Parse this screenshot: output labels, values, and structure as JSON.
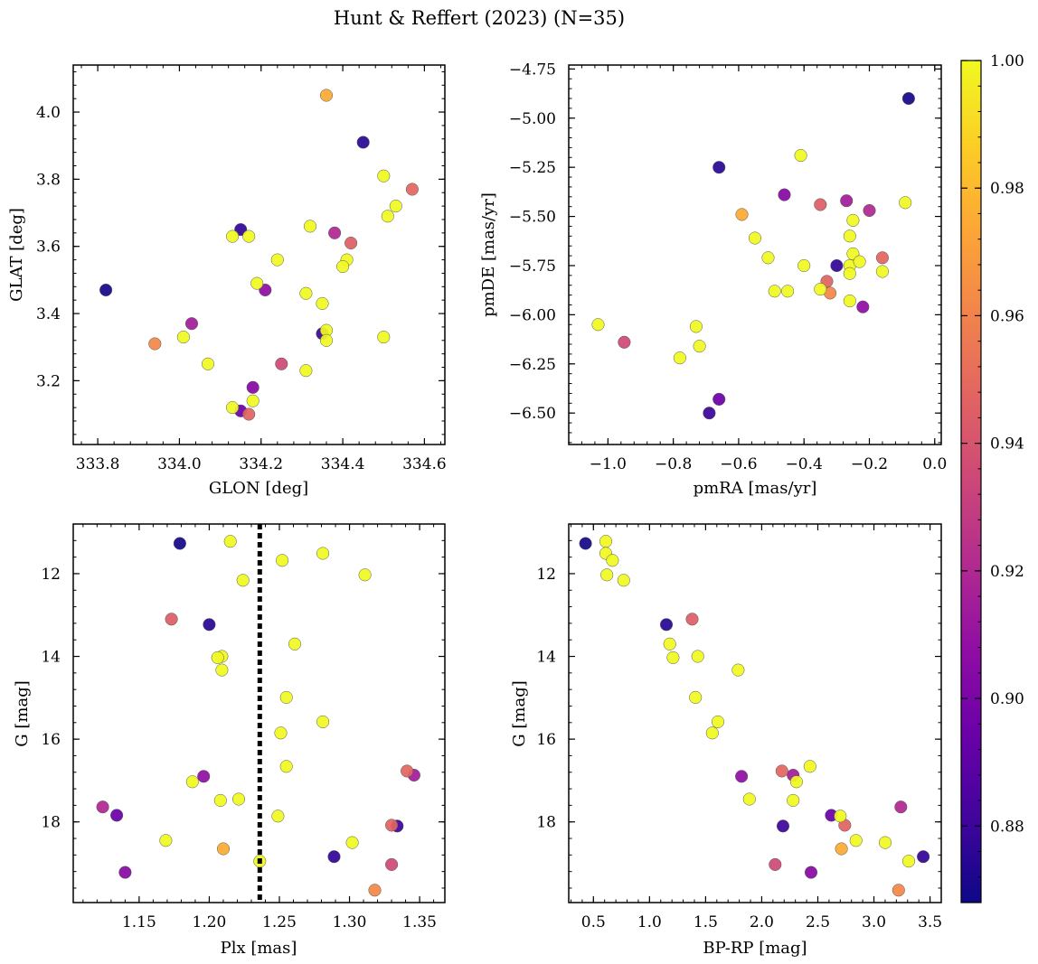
{
  "chart_data": {
    "title": "Hunt & Reffert (2023) (N=35)",
    "type": "scatter",
    "colorbar": {
      "vmin": 0.868,
      "vmax": 1.0,
      "ticks": [
        0.88,
        0.9,
        0.92,
        0.94,
        0.96,
        0.98,
        1.0
      ],
      "tick_labels": [
        "0.88",
        "0.90",
        "0.92",
        "0.94",
        "0.96",
        "0.98",
        "1.00"
      ],
      "colormap": "plasma"
    },
    "panels": [
      {
        "name": "sky-position",
        "xlabel": "GLON [deg]",
        "ylabel": "GLAT [deg]",
        "xlim": [
          333.74,
          334.65
        ],
        "ylim": [
          3.01,
          4.14
        ],
        "invert_y": false,
        "xticks": [
          333.8,
          334.0,
          334.2,
          334.4,
          334.6
        ],
        "xtick_labels": [
          "333.8",
          "334.0",
          "334.2",
          "334.4",
          "334.6"
        ],
        "yticks": [
          3.2,
          3.4,
          3.6,
          3.8,
          4.0
        ],
        "ytick_labels": [
          "3.2",
          "3.4",
          "3.6",
          "3.8",
          "4.0"
        ]
      },
      {
        "name": "proper-motion",
        "xlabel": "pmRA [mas/yr]",
        "ylabel": "pmDE [mas/yr]",
        "xlim": [
          -1.12,
          0.02
        ],
        "ylim": [
          -6.66,
          -4.73
        ],
        "invert_y": false,
        "xticks": [
          -1.0,
          -0.8,
          -0.6,
          -0.4,
          -0.2,
          0.0
        ],
        "xtick_labels": [
          "−1.0",
          "−0.8",
          "−0.6",
          "−0.4",
          "−0.2",
          "0.0"
        ],
        "yticks": [
          -6.5,
          -6.25,
          -6.0,
          -5.75,
          -5.5,
          -5.25,
          -5.0,
          -4.75
        ],
        "ytick_labels": [
          "−6.50",
          "−6.25",
          "−6.00",
          "−5.75",
          "−5.50",
          "−5.25",
          "−5.00",
          "−4.75"
        ]
      },
      {
        "name": "parallax-magnitude",
        "xlabel": "Plx [mas]",
        "ylabel": "G [mag]",
        "xlim": [
          1.103,
          1.368
        ],
        "ylim": [
          10.8,
          19.95
        ],
        "invert_y": true,
        "vline": 1.236,
        "xticks": [
          1.15,
          1.2,
          1.25,
          1.3,
          1.35
        ],
        "xtick_labels": [
          "1.15",
          "1.20",
          "1.25",
          "1.30",
          "1.35"
        ],
        "yticks": [
          12,
          14,
          16,
          18
        ],
        "ytick_labels": [
          "12",
          "14",
          "16",
          "18"
        ]
      },
      {
        "name": "color-magnitude",
        "xlabel": "BP-RP [mag]",
        "ylabel": "G [mag]",
        "xlim": [
          0.28,
          3.6
        ],
        "ylim": [
          10.8,
          19.95
        ],
        "invert_y": true,
        "xticks": [
          0.5,
          1.0,
          1.5,
          2.0,
          2.5,
          3.0,
          3.5
        ],
        "xtick_labels": [
          "0.5",
          "1.0",
          "1.5",
          "2.0",
          "2.5",
          "3.0",
          "3.5"
        ],
        "yticks": [
          12,
          14,
          16,
          18
        ],
        "ytick_labels": [
          "12",
          "14",
          "16",
          "18"
        ]
      }
    ],
    "stars": [
      {
        "glon": 333.82,
        "glat": 3.47,
        "pmra": -0.08,
        "pmde": -4.9,
        "plx": 1.179,
        "g": 11.27,
        "bprp": 0.43,
        "prob": 0.87
      },
      {
        "glon": 334.45,
        "glat": 3.91,
        "pmra": -0.66,
        "pmde": -5.25,
        "plx": 1.2,
        "g": 13.23,
        "bprp": 1.15,
        "prob": 0.875
      },
      {
        "glon": 334.15,
        "glat": 3.65,
        "pmra": -0.3,
        "pmde": -5.75,
        "plx": 1.289,
        "g": 18.84,
        "bprp": 3.44,
        "prob": 0.878
      },
      {
        "glon": 334.35,
        "glat": 3.34,
        "pmra": -0.69,
        "pmde": -6.5,
        "plx": 1.334,
        "g": 18.1,
        "bprp": 2.19,
        "prob": 0.88
      },
      {
        "glon": 334.15,
        "glat": 3.11,
        "pmra": -0.66,
        "pmde": -6.43,
        "plx": 1.134,
        "g": 17.84,
        "bprp": 2.62,
        "prob": 0.895
      },
      {
        "glon": 334.18,
        "glat": 3.18,
        "pmra": -0.46,
        "pmde": -5.39,
        "plx": 1.14,
        "g": 19.22,
        "bprp": 2.44,
        "prob": 0.905
      },
      {
        "glon": 334.21,
        "glat": 3.47,
        "pmra": -0.22,
        "pmde": -5.96,
        "plx": 1.196,
        "g": 16.9,
        "bprp": 1.82,
        "prob": 0.908
      },
      {
        "glon": 334.03,
        "glat": 3.37,
        "pmra": -0.27,
        "pmde": -5.42,
        "plx": 1.346,
        "g": 16.87,
        "bprp": 2.28,
        "prob": 0.915
      },
      {
        "glon": 334.38,
        "glat": 3.64,
        "pmra": -0.2,
        "pmde": -5.47,
        "plx": 1.124,
        "g": 17.64,
        "bprp": 3.24,
        "prob": 0.92
      },
      {
        "glon": 334.25,
        "glat": 3.25,
        "pmra": -0.95,
        "pmde": -6.14,
        "plx": 1.33,
        "g": 19.03,
        "bprp": 2.12,
        "prob": 0.935
      },
      {
        "glon": 334.42,
        "glat": 3.61,
        "pmra": -0.35,
        "pmde": -5.44,
        "plx": 1.173,
        "g": 13.1,
        "bprp": 1.38,
        "prob": 0.945
      },
      {
        "glon": 334.17,
        "glat": 3.1,
        "pmra": -0.33,
        "pmde": -5.83,
        "plx": 1.33,
        "g": 18.08,
        "bprp": 2.74,
        "prob": 0.947
      },
      {
        "glon": 334.57,
        "glat": 3.77,
        "pmra": -0.16,
        "pmde": -5.71,
        "plx": 1.341,
        "g": 16.77,
        "bprp": 2.18,
        "prob": 0.948
      },
      {
        "glon": 333.94,
        "glat": 3.31,
        "pmra": -0.32,
        "pmde": -5.89,
        "plx": 1.318,
        "g": 19.65,
        "bprp": 3.22,
        "prob": 0.962
      },
      {
        "glon": 334.36,
        "glat": 4.05,
        "pmra": -0.59,
        "pmde": -5.49,
        "plx": 1.21,
        "g": 18.65,
        "bprp": 2.71,
        "prob": 0.975
      },
      {
        "glon": 334.13,
        "glat": 3.63,
        "pmra": -0.41,
        "pmde": -5.19,
        "plx": 1.215,
        "g": 11.22,
        "bprp": 0.61,
        "prob": 1.0
      },
      {
        "glon": 334.17,
        "glat": 3.63,
        "pmra": -0.09,
        "pmde": -5.43,
        "plx": 1.281,
        "g": 11.51,
        "bprp": 0.61,
        "prob": 1.0
      },
      {
        "glon": 334.5,
        "glat": 3.81,
        "pmra": -0.55,
        "pmde": -5.61,
        "plx": 1.252,
        "g": 11.68,
        "bprp": 0.67,
        "prob": 1.0
      },
      {
        "glon": 334.53,
        "glat": 3.72,
        "pmra": -0.51,
        "pmde": -5.71,
        "plx": 1.311,
        "g": 12.03,
        "bprp": 0.62,
        "prob": 1.0
      },
      {
        "glon": 334.51,
        "glat": 3.69,
        "pmra": -0.25,
        "pmde": -5.52,
        "plx": 1.224,
        "g": 12.16,
        "bprp": 0.77,
        "prob": 1.0
      },
      {
        "glon": 334.24,
        "glat": 3.56,
        "pmra": -0.26,
        "pmde": -5.6,
        "plx": 1.261,
        "g": 13.7,
        "bprp": 1.18,
        "prob": 1.0
      },
      {
        "glon": 334.32,
        "glat": 3.66,
        "pmra": -0.25,
        "pmde": -5.69,
        "plx": 1.209,
        "g": 14.0,
        "bprp": 1.43,
        "prob": 1.0
      },
      {
        "glon": 334.41,
        "glat": 3.56,
        "pmra": -0.26,
        "pmde": -5.75,
        "plx": 1.206,
        "g": 14.03,
        "bprp": 1.21,
        "prob": 1.0
      },
      {
        "glon": 334.4,
        "glat": 3.54,
        "pmra": -0.23,
        "pmde": -5.73,
        "plx": 1.209,
        "g": 14.33,
        "bprp": 1.79,
        "prob": 1.0
      },
      {
        "glon": 334.19,
        "glat": 3.49,
        "pmra": -0.26,
        "pmde": -5.79,
        "plx": 1.255,
        "g": 14.99,
        "bprp": 1.41,
        "prob": 1.0
      },
      {
        "glon": 334.31,
        "glat": 3.46,
        "pmra": -0.16,
        "pmde": -5.78,
        "plx": 1.281,
        "g": 15.58,
        "bprp": 1.61,
        "prob": 1.0
      },
      {
        "glon": 334.35,
        "glat": 3.43,
        "pmra": -0.4,
        "pmde": -5.75,
        "plx": 1.251,
        "g": 15.85,
        "bprp": 1.56,
        "prob": 1.0
      },
      {
        "glon": 334.5,
        "glat": 3.33,
        "pmra": -0.49,
        "pmde": -5.88,
        "plx": 1.255,
        "g": 16.66,
        "bprp": 2.43,
        "prob": 1.0
      },
      {
        "glon": 334.36,
        "glat": 3.35,
        "pmra": -0.45,
        "pmde": -5.88,
        "plx": 1.188,
        "g": 17.03,
        "bprp": 2.31,
        "prob": 1.0
      },
      {
        "glon": 334.36,
        "glat": 3.32,
        "pmra": -0.35,
        "pmde": -5.87,
        "plx": 1.221,
        "g": 17.45,
        "bprp": 1.89,
        "prob": 1.0
      },
      {
        "glon": 334.01,
        "glat": 3.33,
        "pmra": -0.26,
        "pmde": -5.93,
        "plx": 1.208,
        "g": 17.48,
        "bprp": 2.28,
        "prob": 1.0
      },
      {
        "glon": 334.07,
        "glat": 3.25,
        "pmra": -0.73,
        "pmde": -6.06,
        "plx": 1.249,
        "g": 17.86,
        "bprp": 2.7,
        "prob": 1.0
      },
      {
        "glon": 334.31,
        "glat": 3.23,
        "pmra": -1.03,
        "pmde": -6.05,
        "plx": 1.169,
        "g": 18.45,
        "bprp": 2.84,
        "prob": 1.0
      },
      {
        "glon": 334.13,
        "glat": 3.12,
        "pmra": -0.72,
        "pmde": -6.16,
        "plx": 1.302,
        "g": 18.5,
        "bprp": 3.1,
        "prob": 1.0
      },
      {
        "glon": 334.18,
        "glat": 3.14,
        "pmra": -0.78,
        "pmde": -6.22,
        "plx": 1.236,
        "g": 18.95,
        "bprp": 3.31,
        "prob": 1.0
      }
    ]
  }
}
